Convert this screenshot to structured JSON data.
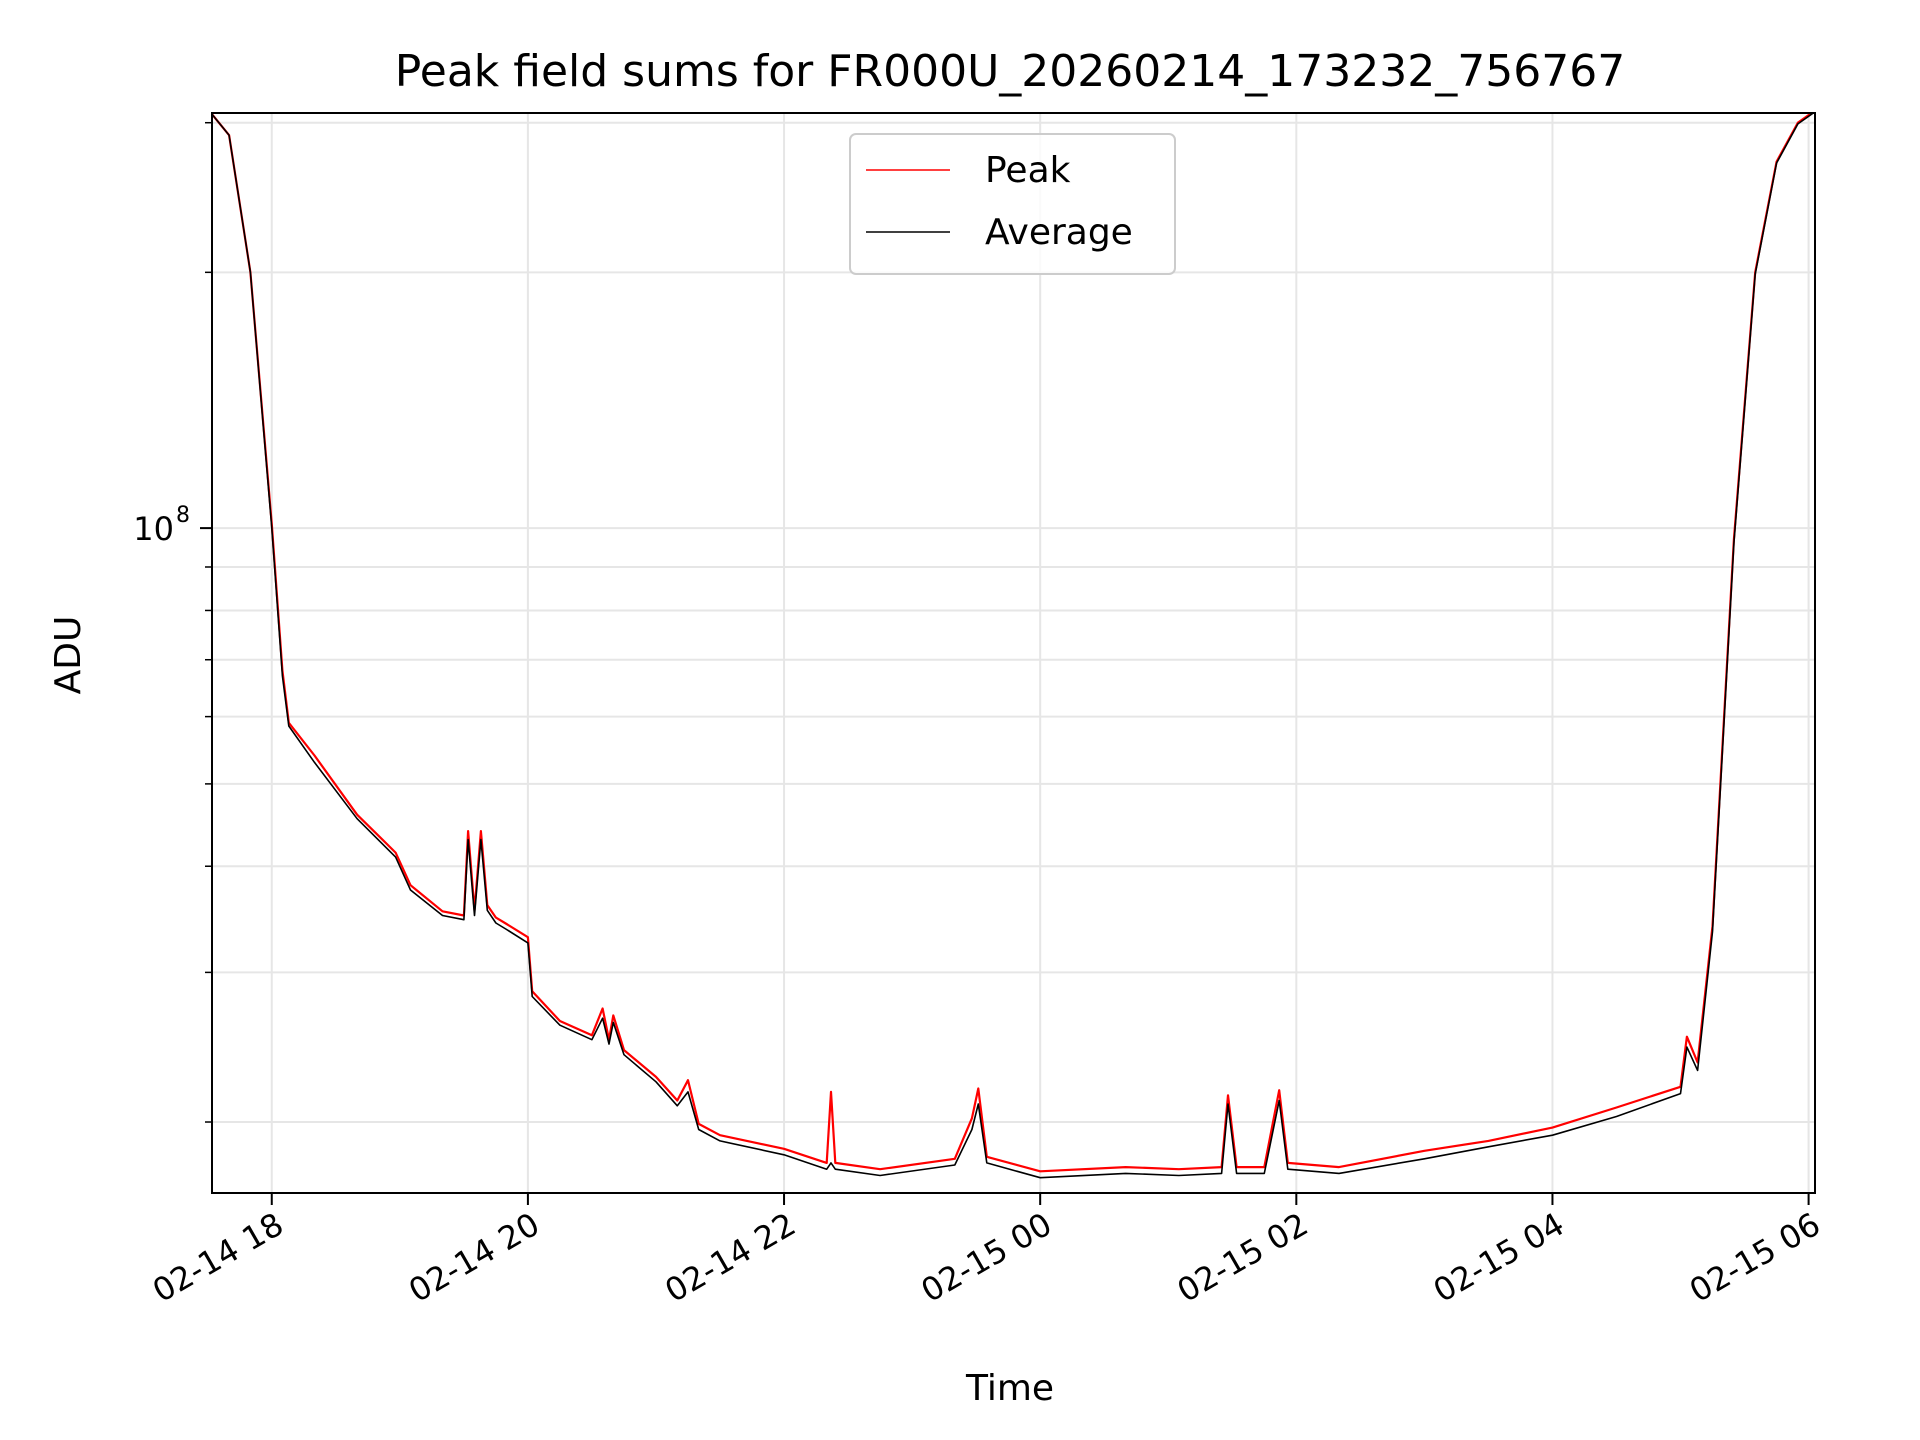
{
  "chart_data": {
    "type": "line",
    "title": "Peak field sums for FR000U_20260214_173232_756767",
    "xlabel": "Time",
    "ylabel": "ADU",
    "yscale": "log",
    "ylim": [
      16500000,
      308000000
    ],
    "xlim": [
      "2026-02-14 17:32",
      "2026-02-15 06:03"
    ],
    "grid": true,
    "legend_position": "top-center",
    "x_ticks": [
      "02-14 18",
      "02-14 20",
      "02-14 22",
      "02-15 00",
      "02-15 02",
      "02-15 04",
      "02-15 06"
    ],
    "x_tick_times": [
      "2026-02-14 18:00",
      "2026-02-14 20:00",
      "2026-02-14 22:00",
      "2026-02-15 00:00",
      "2026-02-15 02:00",
      "2026-02-15 04:00",
      "2026-02-15 06:00"
    ],
    "y_major_ticks": [
      {
        "value": 100000000,
        "base": "10",
        "exponent": "8"
      }
    ],
    "y_minor_ticks": [
      20000000,
      30000000,
      40000000,
      50000000,
      60000000,
      70000000,
      80000000,
      90000000,
      200000000,
      300000000
    ],
    "series": [
      {
        "name": "Peak",
        "color": "#ff0000",
        "x": [
          "2026-02-14 17:32",
          "2026-02-14 17:40",
          "2026-02-14 17:50",
          "2026-02-14 18:00",
          "2026-02-14 18:05",
          "2026-02-14 18:08",
          "2026-02-14 18:20",
          "2026-02-14 18:40",
          "2026-02-14 18:58",
          "2026-02-14 19:05",
          "2026-02-14 19:20",
          "2026-02-14 19:30",
          "2026-02-14 19:32",
          "2026-02-14 19:35",
          "2026-02-14 19:38",
          "2026-02-14 19:41",
          "2026-02-14 19:45",
          "2026-02-14 19:50",
          "2026-02-14 20:00",
          "2026-02-14 20:02",
          "2026-02-14 20:15",
          "2026-02-14 20:30",
          "2026-02-14 20:35",
          "2026-02-14 20:38",
          "2026-02-14 20:40",
          "2026-02-14 20:45",
          "2026-02-14 21:00",
          "2026-02-14 21:10",
          "2026-02-14 21:15",
          "2026-02-14 21:20",
          "2026-02-14 21:30",
          "2026-02-14 22:00",
          "2026-02-14 22:20",
          "2026-02-14 22:22",
          "2026-02-14 22:24",
          "2026-02-14 22:45",
          "2026-02-14 23:20",
          "2026-02-14 23:28",
          "2026-02-14 23:31",
          "2026-02-14 23:35",
          "2026-02-15 00:00",
          "2026-02-15 00:40",
          "2026-02-15 01:05",
          "2026-02-15 01:25",
          "2026-02-15 01:28",
          "2026-02-15 01:32",
          "2026-02-15 01:45",
          "2026-02-15 01:52",
          "2026-02-15 01:56",
          "2026-02-15 02:20",
          "2026-02-15 03:00",
          "2026-02-15 03:30",
          "2026-02-15 04:00",
          "2026-02-15 04:30",
          "2026-02-15 05:00",
          "2026-02-15 05:03",
          "2026-02-15 05:08",
          "2026-02-15 05:15",
          "2026-02-15 05:25",
          "2026-02-15 05:35",
          "2026-02-15 05:45",
          "2026-02-15 05:55",
          "2026-02-15 06:03"
        ],
        "values": [
          307000000,
          290000000,
          200000000,
          101000000,
          68000000,
          59000000,
          54000000,
          46000000,
          41500000,
          38000000,
          35400000,
          35000000,
          44000000,
          35500000,
          44000000,
          36000000,
          34800000,
          34200000,
          33000000,
          28500000,
          26300000,
          25300000,
          27200000,
          25000000,
          26700000,
          24300000,
          22600000,
          21200000,
          22400000,
          19900000,
          19300000,
          18600000,
          17900000,
          21700000,
          17900000,
          17600000,
          18100000,
          20200000,
          21900000,
          18200000,
          17500000,
          17700000,
          17600000,
          17700000,
          21500000,
          17700000,
          17700000,
          21800000,
          17900000,
          17700000,
          18500000,
          19000000,
          19700000,
          20800000,
          22000000,
          25200000,
          23500000,
          34000000,
          97000000,
          200000000,
          270000000,
          300000000,
          310000000
        ]
      },
      {
        "name": "Average",
        "color": "#000000",
        "x": [
          "2026-02-14 17:32",
          "2026-02-14 17:40",
          "2026-02-14 17:50",
          "2026-02-14 18:00",
          "2026-02-14 18:05",
          "2026-02-14 18:08",
          "2026-02-14 18:20",
          "2026-02-14 18:40",
          "2026-02-14 18:58",
          "2026-02-14 19:05",
          "2026-02-14 19:20",
          "2026-02-14 19:30",
          "2026-02-14 19:32",
          "2026-02-14 19:35",
          "2026-02-14 19:38",
          "2026-02-14 19:41",
          "2026-02-14 19:45",
          "2026-02-14 19:50",
          "2026-02-14 20:00",
          "2026-02-14 20:02",
          "2026-02-14 20:15",
          "2026-02-14 20:30",
          "2026-02-14 20:35",
          "2026-02-14 20:38",
          "2026-02-14 20:40",
          "2026-02-14 20:45",
          "2026-02-14 21:00",
          "2026-02-14 21:10",
          "2026-02-14 21:15",
          "2026-02-14 21:20",
          "2026-02-14 21:30",
          "2026-02-14 22:00",
          "2026-02-14 22:20",
          "2026-02-14 22:22",
          "2026-02-14 22:24",
          "2026-02-14 22:45",
          "2026-02-14 23:20",
          "2026-02-14 23:28",
          "2026-02-14 23:31",
          "2026-02-14 23:35",
          "2026-02-15 00:00",
          "2026-02-15 00:40",
          "2026-02-15 01:05",
          "2026-02-15 01:25",
          "2026-02-15 01:28",
          "2026-02-15 01:32",
          "2026-02-15 01:45",
          "2026-02-15 01:52",
          "2026-02-15 01:56",
          "2026-02-15 02:20",
          "2026-02-15 03:00",
          "2026-02-15 03:30",
          "2026-02-15 04:00",
          "2026-02-15 04:30",
          "2026-02-15 05:00",
          "2026-02-15 05:03",
          "2026-02-15 05:08",
          "2026-02-15 05:15",
          "2026-02-15 05:25",
          "2026-02-15 05:35",
          "2026-02-15 05:45",
          "2026-02-15 05:55",
          "2026-02-15 06:03"
        ],
        "values": [
          307000000,
          290000000,
          200000000,
          100000000,
          67000000,
          58500000,
          53000000,
          45500000,
          41000000,
          37500000,
          35000000,
          34600000,
          43000000,
          35000000,
          43000000,
          35500000,
          34300000,
          33700000,
          32500000,
          28100000,
          26000000,
          25000000,
          26500000,
          24700000,
          26200000,
          24000000,
          22300000,
          20900000,
          21700000,
          19600000,
          19000000,
          18300000,
          17600000,
          17900000,
          17600000,
          17300000,
          17800000,
          19600000,
          21000000,
          17900000,
          17200000,
          17400000,
          17300000,
          17400000,
          21000000,
          17400000,
          17400000,
          21200000,
          17600000,
          17400000,
          18100000,
          18700000,
          19300000,
          20300000,
          21600000,
          24500000,
          23000000,
          33500000,
          96000000,
          199000000,
          269000000,
          299000000,
          309000000
        ]
      }
    ]
  }
}
